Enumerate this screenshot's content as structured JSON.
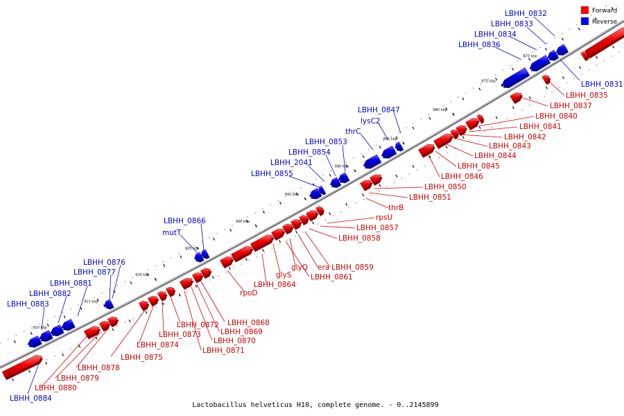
{
  "caption": "Lactobacillus helveticus H10, complete genome. - 0..2145899",
  "legend": {
    "forward": {
      "label": "Forward",
      "color": "#ff0000"
    },
    "reverse": {
      "label": "Reverse",
      "color": "#0000ff"
    }
  },
  "ticks": [
    "870 kbp",
    "875 kbp",
    "880 kbp",
    "885 kbp",
    "890 kbp",
    "895 kbp",
    "900 kbp",
    "905 kbp",
    "910 kbp",
    "915 kbp",
    "920 kbp"
  ],
  "reverse_labels": [
    "LBHH_0832",
    "LBHH_0833",
    "LBHH_0834",
    "LBHH_0836",
    "LBHH_0831",
    "LBHH_0847",
    "lysC2",
    "thrC",
    "LBHH_0853",
    "LBHH_0854",
    "LBHH_2041",
    "LBHH_0855",
    "LBHH_0866",
    "mutT",
    "LBHH_0876",
    "LBHH_0877",
    "LBHH_0881",
    "LBHH_0882",
    "LBHH_0883",
    "LBHH_0884"
  ],
  "forward_labels": [
    "LBHH_0835",
    "LBHH_0837",
    "LBHH_0840",
    "LBHH_0841",
    "LBHH_0842",
    "LBHH_0843",
    "LBHH_0844",
    "LBHH_0845",
    "LBHH_0846",
    "LBHH_0850",
    "LBHH_0851",
    "thrB",
    "rpsU",
    "LBHH_0857",
    "LBHH_0858",
    "LBHH_0859",
    "era",
    "glyQ",
    "LBHH_0861",
    "glyS",
    "LBHH_0864",
    "rpoD",
    "LBHH_0868",
    "LBHH_0869",
    "LBHH_0870",
    "LBHH_0871",
    "LBHH_0872",
    "LBHH_0873",
    "LBHH_0874",
    "LBHH_0875",
    "LBHH_0878",
    "LBHH_0879",
    "LBHH_0880"
  ]
}
